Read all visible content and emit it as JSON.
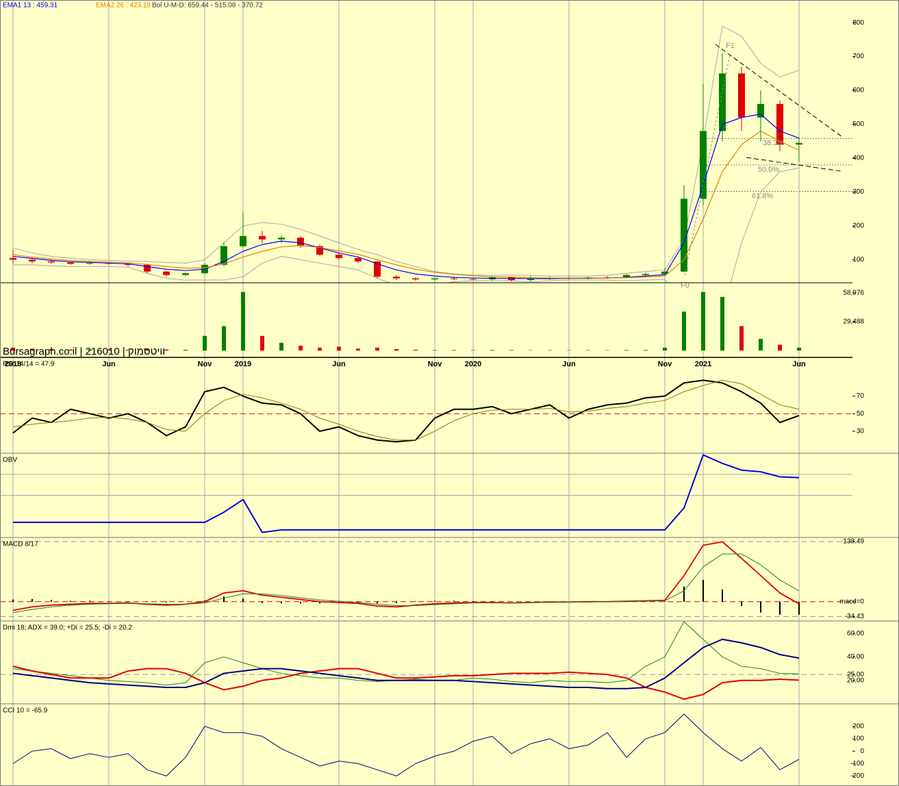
{
  "chart_data": [
    {
      "type": "candlestick",
      "open": [
        105,
        100,
        95,
        92,
        88,
        90,
        88,
        85,
        65,
        55,
        60,
        85,
        140,
        170,
        160,
        165,
        140,
        115,
        105,
        95,
        50,
        45,
        42,
        45,
        43,
        42,
        48,
        40,
        44,
        46,
        45,
        48,
        47,
        55,
        58,
        65,
        280,
        480,
        650,
        520,
        560,
        440
      ],
      "high": [
        130,
        105,
        100,
        95,
        94,
        92,
        90,
        88,
        68,
        62,
        90,
        150,
        240,
        185,
        172,
        170,
        145,
        120,
        110,
        97,
        55,
        48,
        46,
        50,
        46,
        52,
        50,
        52,
        50,
        52,
        50,
        52,
        58,
        62,
        75,
        320,
        620,
        710,
        670,
        600,
        570,
        460
      ],
      "low": [
        90,
        90,
        88,
        85,
        85,
        85,
        80,
        60,
        50,
        52,
        58,
        80,
        135,
        150,
        150,
        135,
        110,
        100,
        90,
        45,
        40,
        38,
        38,
        40,
        40,
        38,
        36,
        36,
        40,
        42,
        42,
        44,
        45,
        50,
        55,
        62,
        260,
        450,
        480,
        450,
        420,
        390
      ],
      "close": [
        100,
        95,
        92,
        88,
        90,
        88,
        85,
        65,
        55,
        60,
        85,
        140,
        170,
        160,
        165,
        140,
        115,
        105,
        95,
        50,
        45,
        42,
        45,
        43,
        42,
        48,
        40,
        44,
        46,
        45,
        48,
        47,
        55,
        58,
        65,
        280,
        480,
        650,
        520,
        560,
        440,
        445
      ],
      "up_color": "#008000",
      "down_color": "#e00000",
      "series": [
        {
          "name": "EMA1 13 : 459.31",
          "color": "#0000ff",
          "values": [
            110,
            104,
            98,
            94,
            92,
            90,
            88,
            80,
            72,
            68,
            72,
            95,
            125,
            145,
            155,
            150,
            135,
            120,
            108,
            88,
            70,
            58,
            52,
            48,
            46,
            45,
            45,
            44,
            44,
            45,
            45,
            46,
            48,
            52,
            56,
            150,
            320,
            500,
            520,
            530,
            480,
            459.31
          ]
        },
        {
          "name": "EMA2 26 : 423.18",
          "color": "#e08000",
          "values": [
            115,
            108,
            102,
            98,
            95,
            93,
            91,
            86,
            80,
            75,
            76,
            88,
            108,
            125,
            138,
            142,
            136,
            126,
            116,
            100,
            85,
            72,
            63,
            57,
            53,
            50,
            49,
            47,
            46,
            46,
            46,
            46,
            47,
            49,
            52,
            100,
            220,
            360,
            440,
            480,
            450,
            423.18
          ]
        }
      ],
      "bollinger": {
        "name": "Bol U-M-D: 659.44 - 515.08 - 370.72",
        "color": "#a8a8a8",
        "upper": [
          135,
          120,
          110,
          105,
          100,
          98,
          96,
          95,
          92,
          90,
          100,
          150,
          200,
          210,
          205,
          190,
          170,
          150,
          130,
          115,
          95,
          80,
          65,
          58,
          55,
          54,
          55,
          54,
          52,
          52,
          52,
          54,
          60,
          65,
          70,
          160,
          450,
          790,
          760,
          680,
          640,
          659.44
        ],
        "lower": [
          85,
          85,
          82,
          80,
          80,
          80,
          78,
          60,
          45,
          40,
          40,
          40,
          50,
          90,
          110,
          100,
          90,
          80,
          70,
          45,
          25,
          20,
          25,
          35,
          38,
          38,
          38,
          35,
          38,
          40,
          40,
          40,
          38,
          40,
          42,
          -20,
          -80,
          -60,
          150,
          300,
          360,
          370.72
        ]
      },
      "fibonacci": [
        {
          "name": "38.2%",
          "value": 458
        },
        {
          "name": "50.0%",
          "value": 380
        },
        {
          "name": "61.8%",
          "value": 302
        }
      ],
      "annotations": [
        "F1",
        "F0"
      ],
      "ylim": [
        32,
        867
      ],
      "yticks": [
        100,
        200,
        300,
        400,
        500,
        600,
        700,
        800
      ]
    },
    {
      "type": "bar",
      "categories": [
        "2018",
        null,
        null,
        null,
        null,
        "Jun",
        null,
        null,
        null,
        null,
        "Nov",
        null,
        "2019",
        null,
        null,
        null,
        null,
        "Jun",
        null,
        null,
        null,
        null,
        "Nov",
        null,
        "2020",
        null,
        null,
        null,
        null,
        "Jun",
        null,
        null,
        null,
        null,
        "Nov",
        null,
        "2021",
        null,
        null,
        null,
        null,
        "Jun"
      ],
      "values": [
        3000,
        2000,
        1500,
        1000,
        1000,
        1000,
        800,
        1500,
        1000,
        800,
        15000,
        25000,
        60000,
        15000,
        8000,
        5000,
        3000,
        4000,
        2000,
        3000,
        1500,
        800,
        500,
        500,
        400,
        600,
        500,
        300,
        400,
        300,
        400,
        300,
        500,
        600,
        3000,
        40000,
        60000,
        55000,
        25000,
        12000,
        6000,
        3000
      ],
      "watermark": "Bursagraph.co.il | 216010 | וויטסמוק",
      "ylim": [
        -7000,
        68800
      ],
      "yticks": [
        {
          "value": 29488,
          "label": "29,488"
        },
        {
          "value": 58976,
          "label": "58,976"
        }
      ]
    },
    {
      "type": "line",
      "title": "RSI 14/14 = 47.9",
      "series": [
        {
          "name": "RSI",
          "color": "#000000",
          "values": [
            28,
            45,
            40,
            55,
            50,
            45,
            50,
            40,
            25,
            35,
            75,
            80,
            70,
            62,
            60,
            50,
            30,
            35,
            25,
            20,
            18,
            20,
            45,
            55,
            55,
            58,
            50,
            55,
            60,
            45,
            55,
            60,
            62,
            68,
            70,
            85,
            88,
            85,
            75,
            62,
            40,
            47.9
          ]
        },
        {
          "name": "MA",
          "color": "#808000",
          "values": [
            35,
            38,
            40,
            42,
            45,
            46,
            44,
            40,
            32,
            30,
            50,
            65,
            72,
            68,
            62,
            55,
            45,
            38,
            30,
            24,
            20,
            20,
            30,
            42,
            50,
            54,
            55,
            55,
            56,
            52,
            53,
            56,
            58,
            62,
            65,
            75,
            82,
            88,
            84,
            72,
            60,
            55
          ]
        }
      ],
      "reference_lines": [
        {
          "value": 50,
          "color": "#e00000"
        }
      ],
      "ylim": [
        5,
        114
      ],
      "yticks": [
        30,
        50,
        70
      ]
    },
    {
      "type": "line",
      "title": "OBV",
      "series": [
        {
          "name": "OBV",
          "color": "#0000dd",
          "values": [
            18,
            18,
            18,
            18,
            18,
            18,
            18,
            18,
            18,
            18,
            18,
            30,
            45,
            6,
            9,
            9,
            9,
            9,
            9,
            9,
            9,
            9,
            9,
            9,
            9,
            9,
            9,
            9,
            9,
            9,
            9,
            9,
            9,
            9,
            9,
            35,
            98,
            88,
            80,
            78,
            72,
            71
          ]
        }
      ],
      "gridlines": [
        50,
        75
      ],
      "ylim": [
        0,
        100
      ]
    },
    {
      "type": "line",
      "title": "MACD 8/17",
      "series": [
        {
          "name": "Histogram",
          "type": "bar",
          "color": "#000000",
          "values": [
            5,
            6,
            4,
            2,
            2,
            1,
            1,
            -1,
            -2,
            0,
            3,
            12,
            7,
            -3,
            -4,
            -4,
            -4,
            -3,
            -2,
            -4,
            -3,
            1,
            2,
            2,
            1,
            1,
            0,
            0,
            1,
            0,
            1,
            0,
            1,
            1,
            1,
            35,
            50,
            28,
            -10,
            -25,
            -30,
            -30
          ]
        },
        {
          "name": "MACD",
          "color": "#e00000",
          "values": [
            -20,
            -12,
            -8,
            -6,
            -4,
            -4,
            -3,
            -6,
            -8,
            -6,
            0,
            20,
            25,
            15,
            10,
            5,
            0,
            -2,
            -4,
            -10,
            -12,
            -8,
            -5,
            -3,
            -2,
            -2,
            -3,
            -2,
            -1,
            -1,
            0,
            0,
            1,
            2,
            3,
            60,
            130,
            138,
            100,
            60,
            20,
            -5
          ]
        },
        {
          "name": "Signal",
          "color": "#208020",
          "values": [
            -25,
            -18,
            -12,
            -8,
            -6,
            -5,
            -4,
            -5,
            -6,
            -6,
            -3,
            8,
            18,
            18,
            14,
            9,
            4,
            1,
            -2,
            -6,
            -9,
            -9,
            -7,
            -5,
            -3,
            -3,
            -3,
            -2,
            -2,
            -1,
            -1,
            0,
            0,
            1,
            2,
            25,
            80,
            110,
            110,
            85,
            50,
            25
          ]
        }
      ],
      "reference_lines": [
        {
          "value": 0,
          "color": "#e00000"
        },
        {
          "value": 138.49,
          "color": "#999999"
        },
        {
          "value": -34.43,
          "color": "#999999"
        }
      ],
      "ylim": [
        -44.6,
        148
      ],
      "yticks": [
        -34.43,
        {
          "value": 0,
          "label": "macd=0"
        },
        138.49
      ]
    },
    {
      "type": "line",
      "title": "Dmi 18; ADX = 39.0; +Di = 25.5; -Di = 20.2",
      "series": [
        {
          "name": "+Di",
          "color": "#208020",
          "values": [
            30,
            28,
            26,
            24,
            22,
            20,
            19,
            18,
            16,
            18,
            35,
            40,
            35,
            30,
            26,
            24,
            22,
            22,
            20,
            19,
            20,
            21,
            20,
            20,
            22,
            21,
            19,
            18,
            20,
            19,
            19,
            18,
            20,
            32,
            40,
            70,
            55,
            40,
            32,
            30,
            26,
            25.5
          ]
        },
        {
          "name": "-Di",
          "color": "#e00000",
          "values": [
            32,
            28,
            25,
            22,
            22,
            22,
            28,
            30,
            30,
            26,
            18,
            12,
            15,
            20,
            22,
            26,
            28,
            30,
            30,
            26,
            22,
            22,
            23,
            24,
            24,
            25,
            26,
            26,
            26,
            27,
            26,
            25,
            22,
            14,
            10,
            4,
            8,
            18,
            20,
            20,
            21,
            20.2
          ]
        },
        {
          "name": "ADX",
          "color": "#000080",
          "values": [
            26,
            24,
            22,
            20,
            18,
            17,
            16,
            15,
            14,
            14,
            18,
            26,
            28,
            30,
            30,
            28,
            26,
            24,
            22,
            20,
            20,
            20,
            20,
            20,
            19,
            18,
            17,
            16,
            15,
            14,
            14,
            13,
            13,
            14,
            22,
            35,
            48,
            55,
            52,
            48,
            42,
            39
          ]
        }
      ],
      "reference_lines": [
        {
          "value": 25,
          "color": "#999999"
        }
      ],
      "ylim": [
        0,
        70.6
      ],
      "yticks": [
        {
          "value": 20,
          "label": "20.00"
        },
        {
          "value": 25,
          "label": "25.00"
        },
        {
          "value": 40,
          "label": "40.00"
        },
        {
          "value": 60,
          "label": "60.00"
        }
      ]
    },
    {
      "type": "line",
      "title": "CCI 10 = -65.9",
      "series": [
        {
          "name": "CCI",
          "color": "#000080",
          "values": [
            -100,
            0,
            20,
            -60,
            -20,
            -50,
            -20,
            -150,
            -200,
            -50,
            200,
            150,
            150,
            120,
            20,
            -50,
            -120,
            -80,
            -100,
            -150,
            -200,
            -100,
            -40,
            0,
            80,
            120,
            -20,
            60,
            100,
            20,
            50,
            150,
            -50,
            100,
            150,
            300,
            150,
            20,
            -80,
            30,
            -150,
            -65.9
          ]
        }
      ],
      "ylim": [
        -281,
        382
      ],
      "yticks": [
        -200,
        -100,
        0,
        100,
        200
      ]
    }
  ]
}
